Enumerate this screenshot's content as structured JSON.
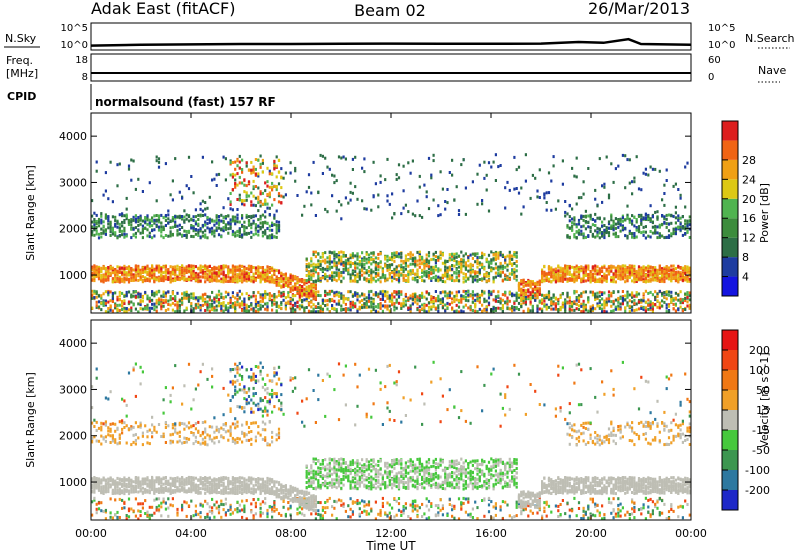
{
  "header": {
    "station": "Adak East (fitACF)",
    "beam": "Beam 02",
    "date": "26/Mar/2013"
  },
  "left_labels": {
    "nsky": "N.Sky",
    "freq": "Freq.",
    "freq_unit": "[MHz]",
    "cpid": "CPID"
  },
  "right_labels": {
    "nsearch": "N.Search",
    "nave": "Nave"
  },
  "noise_ticks": {
    "left_top": "10^5",
    "left_bottom": "10^0",
    "right_top": "10^5",
    "right_bottom": "10^0"
  },
  "freq_ticks": {
    "left_top": "18",
    "left_bottom": "8",
    "right_top": "60",
    "right_bottom": "0"
  },
  "cpid_text": "normalsound (fast) 157 RF",
  "x_axis": {
    "label": "Time UT",
    "ticks": [
      "00:00",
      "04:00",
      "08:00",
      "12:00",
      "16:00",
      "20:00",
      "00:00"
    ]
  },
  "y_axis": {
    "label": "Slant Range [km]",
    "ticks": [
      "1000",
      "2000",
      "3000",
      "4000"
    ]
  },
  "power_colorbar": {
    "label": "Power [dB]",
    "ticks": [
      "4",
      "8",
      "12",
      "16",
      "20",
      "24",
      "28"
    ],
    "colors": [
      "#1414e0",
      "#1e3ca0",
      "#2d6e46",
      "#3c8c3c",
      "#50b450",
      "#dcc814",
      "#f0a014",
      "#f06414",
      "#dc1e1e"
    ]
  },
  "velocity_colorbar": {
    "label": "Velocity [m s^-1]",
    "ticks": [
      "200",
      "100",
      "50",
      "15",
      "-15",
      "-50",
      "-100",
      "-200"
    ],
    "colors": [
      "#1e28c8",
      "#2d78a0",
      "#3c9650",
      "#46c83c",
      "#bebeb4",
      "#f0a028",
      "#f07814",
      "#f04614",
      "#e61414"
    ]
  },
  "chart_data": [
    {
      "type": "line",
      "title": "N.Sky / N.Search",
      "x": [
        0,
        2,
        4,
        6,
        8,
        10,
        12,
        14,
        16,
        18,
        19.5,
        20.5,
        21.5,
        22,
        24
      ],
      "y_log10": [
        0.6,
        0.8,
        0.9,
        1.0,
        1.0,
        1.05,
        1.1,
        1.05,
        1.05,
        1.1,
        1.5,
        1.3,
        2.2,
        1.0,
        0.8
      ],
      "yscale": "log",
      "xlim": [
        0,
        24
      ]
    },
    {
      "type": "line",
      "title": "Freq / Nave",
      "x": [
        0,
        24
      ],
      "y": [
        10.3,
        10.3
      ],
      "ylim": [
        8,
        18
      ],
      "xlim": [
        0,
        24
      ]
    },
    {
      "type": "heatmap",
      "title": "Power [dB]",
      "xlabel": "Time UT",
      "ylabel": "Slant Range [km]",
      "xlim": [
        0,
        24
      ],
      "ylim": [
        180,
        4500
      ],
      "colorbar_range": [
        0,
        30
      ],
      "regions": [
        {
          "t": [
            0,
            24
          ],
          "r": [
            800,
            1200
          ],
          "value": 26
        },
        {
          "t": [
            0,
            7.5
          ],
          "r": [
            1800,
            2300
          ],
          "value": 10
        },
        {
          "t": [
            5.5,
            7.5
          ],
          "r": [
            2500,
            3500
          ],
          "value": 22
        },
        {
          "t": [
            8.5,
            17
          ],
          "r": [
            900,
            1500
          ],
          "value": 14
        },
        {
          "t": [
            0,
            24
          ],
          "r": [
            200,
            600
          ],
          "value": 18
        }
      ]
    },
    {
      "type": "heatmap",
      "title": "Velocity [m s^-1]",
      "xlabel": "Time UT",
      "ylabel": "Slant Range [km]",
      "xlim": [
        0,
        24
      ],
      "ylim": [
        180,
        4500
      ],
      "colorbar_range": [
        -200,
        200
      ],
      "regions": [
        {
          "t": [
            0,
            24
          ],
          "r": [
            700,
            1300
          ],
          "value": 0
        },
        {
          "t": [
            8.5,
            17
          ],
          "r": [
            800,
            1450
          ],
          "value": 40
        },
        {
          "t": [
            0,
            7.5
          ],
          "r": [
            1800,
            2300
          ],
          "value": -30
        },
        {
          "t": [
            5.5,
            7.5
          ],
          "r": [
            2500,
            3500
          ],
          "value": 60
        }
      ]
    }
  ]
}
